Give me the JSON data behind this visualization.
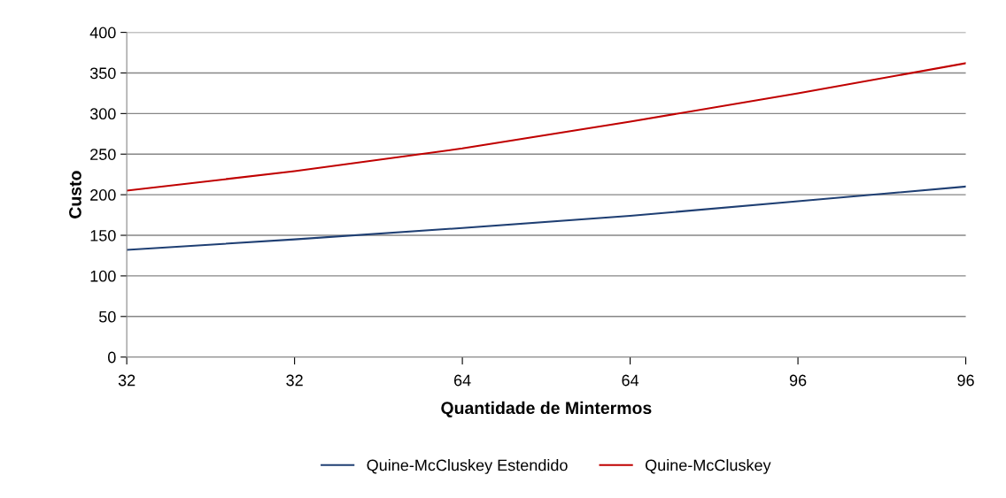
{
  "chart_data": {
    "type": "line",
    "xlabel": "Quantidade de Mintermos",
    "ylabel": "Custo",
    "categories": [
      "32",
      "32",
      "64",
      "64",
      "96",
      "96"
    ],
    "series": [
      {
        "name": "Quine-McCluskey Estendido",
        "color": "#1f3f73",
        "values": [
          132,
          145,
          159,
          174,
          192,
          210
        ]
      },
      {
        "name": "Quine-McCluskey",
        "color": "#c00000",
        "values": [
          205,
          229,
          257,
          290,
          325,
          362
        ]
      }
    ],
    "ylim": [
      0,
      400
    ],
    "yticks": [
      0,
      50,
      100,
      150,
      200,
      250,
      300,
      350,
      400
    ],
    "grid": "y",
    "legend": "bottom",
    "marker": "none",
    "line_style": "solid"
  }
}
